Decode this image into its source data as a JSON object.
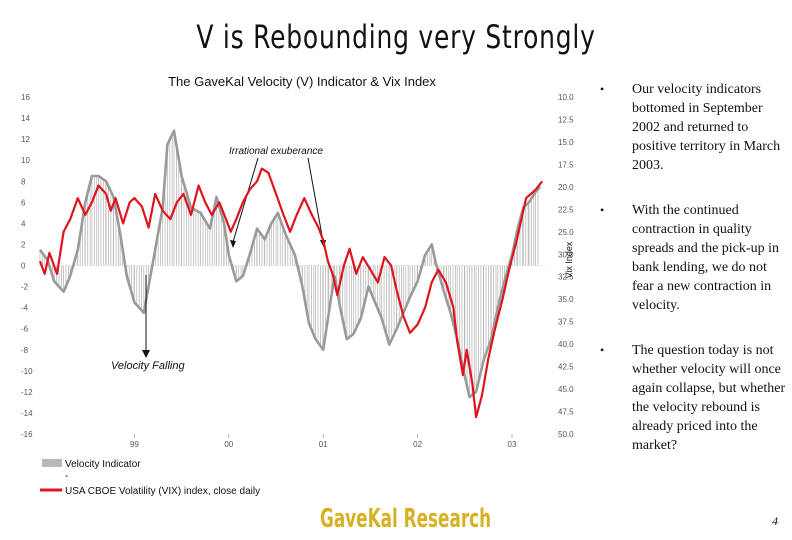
{
  "slide": {
    "title": "V is Rebounding very Strongly",
    "footer_brand": "GaveKal Research",
    "page_number": "4"
  },
  "bullets": [
    "Our velocity indicators bottomed in September 2002 and returned to positive territory in March 2003.",
    "With the continued contraction in quality spreads and the pick-up in bank lending, we do not fear a new contraction in velocity.",
    "The question today is not whether velocity will once again collapse, but whether the velocity rebound is already priced into the market?"
  ],
  "chart_data": {
    "type": "bar+line",
    "title": "The GaveKal Velocity (V) Indicator & Vix Index",
    "y_left": {
      "ticks": [
        "16",
        "14",
        "12",
        "10",
        "8",
        "6",
        "4",
        "2",
        "0",
        "-2",
        "-4",
        "-6",
        "-8",
        "-10",
        "-12",
        "-14",
        "-16"
      ],
      "range": [
        -16,
        16
      ]
    },
    "y_right": {
      "label": "Vix Index",
      "ticks": [
        "10.0",
        "12.5",
        "15.0",
        "17.5",
        "20.0",
        "22.5",
        "25.0",
        "30.0",
        "32.5",
        "35.0",
        "37.5",
        "40.0",
        "42.5",
        "45.0",
        "47.5",
        "50.0"
      ],
      "range": [
        10,
        50
      ],
      "inverted": true
    },
    "x_ticks": [
      "99",
      "00",
      "01",
      "02",
      "03"
    ],
    "x_range": [
      1998.0,
      2003.35
    ],
    "annotations": {
      "irrational_exuberance": "Irrational exuberance",
      "velocity_falling": "Velocity Falling"
    },
    "legend": {
      "placement": "bottom-left",
      "velocity": "Velocity Indicator",
      "separator": "-",
      "vix": "USA CBOE Volatility (VIX) index, close daily"
    },
    "colors": {
      "velocity": "#9a9a9a",
      "vix": "#e0141e"
    },
    "velocity_series": {
      "name": "Velocity Indicator",
      "x": [
        1998.0,
        1998.08,
        1998.15,
        1998.25,
        1998.32,
        1998.4,
        1998.48,
        1998.55,
        1998.62,
        1998.7,
        1998.78,
        1998.85,
        1998.92,
        1999.0,
        1999.1,
        1999.2,
        1999.3,
        1999.35,
        1999.42,
        1999.5,
        1999.6,
        1999.7,
        1999.8,
        1999.87,
        1999.95,
        2000.0,
        2000.08,
        2000.15,
        2000.22,
        2000.3,
        2000.38,
        2000.45,
        2000.52,
        2000.6,
        2000.7,
        2000.78,
        2000.85,
        2000.92,
        2001.0,
        2001.06,
        2001.12,
        2001.18,
        2001.25,
        2001.32,
        2001.4,
        2001.48,
        2001.55,
        2001.62,
        2001.7,
        2001.78,
        2001.85,
        2001.92,
        2002.0,
        2002.08,
        2002.15,
        2002.2,
        2002.28,
        2002.35,
        2002.42,
        2002.5,
        2002.55,
        2002.62,
        2002.7,
        2002.78,
        2002.85,
        2002.92,
        2003.0,
        2003.06,
        2003.12,
        2003.18,
        2003.25,
        2003.3
      ],
      "values": [
        1.5,
        0.5,
        -1.5,
        -2.5,
        -1.0,
        1.5,
        6.0,
        8.5,
        8.5,
        8.0,
        6.5,
        3.0,
        -1.0,
        -3.5,
        -4.5,
        0.5,
        5.5,
        11.5,
        12.8,
        8.5,
        5.5,
        5.0,
        3.5,
        6.5,
        4.0,
        1.0,
        -1.5,
        -1.0,
        1.0,
        3.5,
        2.5,
        4.0,
        5.0,
        3.0,
        1.0,
        -2.0,
        -5.5,
        -7.0,
        -8.0,
        -4.5,
        -1.0,
        -4.0,
        -7.0,
        -6.5,
        -5.0,
        -2.0,
        -3.5,
        -5.0,
        -7.5,
        -6.0,
        -4.5,
        -3.0,
        -1.5,
        1.0,
        2.0,
        0.0,
        -2.5,
        -4.5,
        -7.0,
        -10.5,
        -12.5,
        -12.0,
        -9.0,
        -7.0,
        -4.0,
        -1.5,
        1.0,
        3.5,
        5.5,
        6.0,
        7.0,
        7.5
      ]
    },
    "vix_series": {
      "name": "USA CBOE Volatility (VIX) index, close daily",
      "x": [
        1998.0,
        1998.05,
        1998.1,
        1998.18,
        1998.25,
        1998.32,
        1998.4,
        1998.48,
        1998.55,
        1998.62,
        1998.7,
        1998.75,
        1998.8,
        1998.88,
        1998.95,
        1999.0,
        1999.08,
        1999.15,
        1999.22,
        1999.3,
        1999.38,
        1999.45,
        1999.52,
        1999.6,
        1999.68,
        1999.75,
        1999.82,
        1999.9,
        1999.97,
        2000.02,
        2000.08,
        2000.15,
        2000.22,
        2000.3,
        2000.35,
        2000.42,
        2000.5,
        2000.58,
        2000.65,
        2000.72,
        2000.8,
        2000.88,
        2000.95,
        2001.0,
        2001.05,
        2001.1,
        2001.15,
        2001.22,
        2001.28,
        2001.35,
        2001.42,
        2001.5,
        2001.58,
        2001.65,
        2001.72,
        2001.78,
        2001.85,
        2001.92,
        2002.0,
        2002.08,
        2002.15,
        2002.22,
        2002.3,
        2002.38,
        2002.42,
        2002.48,
        2002.52,
        2002.58,
        2002.62,
        2002.68,
        2002.75,
        2002.82,
        2002.9,
        2002.97,
        2003.05,
        2003.1,
        2003.15,
        2003.2,
        2003.25,
        2003.32
      ],
      "values": [
        29.5,
        31.0,
        28.5,
        31.0,
        26.0,
        24.5,
        22.0,
        24.0,
        22.5,
        20.5,
        21.5,
        23.5,
        22.0,
        25.0,
        22.5,
        22.0,
        23.0,
        25.5,
        21.5,
        23.5,
        24.5,
        22.5,
        21.5,
        24.0,
        20.5,
        22.5,
        24.0,
        22.5,
        24.5,
        26.0,
        24.5,
        22.5,
        21.0,
        20.0,
        18.5,
        19.0,
        21.5,
        24.0,
        26.0,
        24.0,
        22.0,
        24.0,
        25.5,
        27.0,
        29.5,
        31.0,
        33.5,
        30.0,
        28.0,
        31.0,
        29.0,
        30.5,
        32.0,
        29.0,
        30.0,
        33.0,
        36.0,
        38.0,
        37.0,
        35.0,
        32.0,
        30.5,
        32.0,
        35.0,
        39.0,
        43.0,
        40.0,
        44.0,
        48.0,
        45.5,
        41.0,
        37.5,
        34.0,
        30.5,
        27.0,
        24.5,
        22.0,
        21.5,
        21.0,
        20.0
      ]
    }
  }
}
